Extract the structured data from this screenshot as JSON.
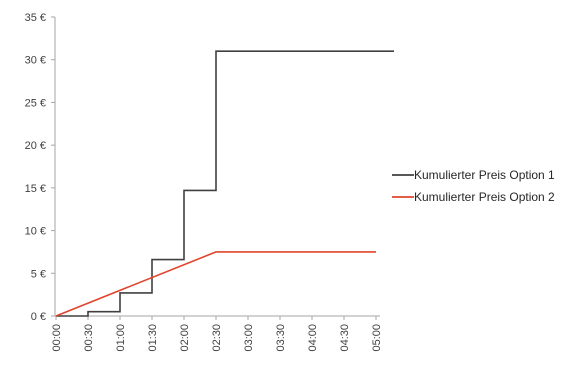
{
  "chart_data": {
    "type": "line",
    "title": "",
    "xlabel": "",
    "ylabel": "",
    "x_categories": [
      "00:00",
      "00:30",
      "01:00",
      "01:30",
      "02:00",
      "02:30",
      "03:00",
      "03:30",
      "04:00",
      "04:30",
      "05:00"
    ],
    "x_range_minutes": [
      0,
      300
    ],
    "y_ticks": [
      {
        "value": 0,
        "label": "0 €"
      },
      {
        "value": 5,
        "label": "5 €"
      },
      {
        "value": 10,
        "label": "10 €"
      },
      {
        "value": 15,
        "label": "15 €"
      },
      {
        "value": 20,
        "label": "20 €"
      },
      {
        "value": 25,
        "label": "25 €"
      },
      {
        "value": 30,
        "label": "30 €"
      },
      {
        "value": 35,
        "label": "35 €"
      }
    ],
    "ylim": [
      0,
      35
    ],
    "grid": false,
    "legend_position": "right",
    "series": [
      {
        "name": "Kumulierter Preis Option 1",
        "color": "#404040",
        "step": true,
        "x_minutes": [
          0,
          30,
          60,
          90,
          120,
          150,
          320
        ],
        "y": [
          0,
          0.5,
          2.7,
          6.6,
          14.7,
          31,
          31
        ]
      },
      {
        "name": "Kumulierter Preis Option 2",
        "color": "#e0442c",
        "step": false,
        "x_minutes": [
          0,
          150,
          300
        ],
        "y": [
          0,
          7.5,
          7.5
        ]
      }
    ]
  }
}
